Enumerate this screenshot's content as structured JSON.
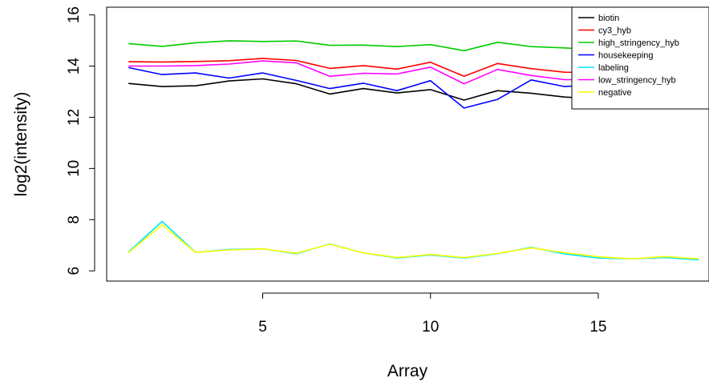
{
  "chart_data": {
    "type": "line",
    "xlabel": "Array",
    "ylabel": "log2(intensity)",
    "xlim": [
      0.35,
      18.3
    ],
    "ylim": [
      5.6,
      16.3
    ],
    "xticks": [
      5,
      10,
      15
    ],
    "yticks": [
      6,
      8,
      10,
      12,
      14,
      16
    ],
    "x": [
      1,
      2,
      3,
      4,
      5,
      6,
      7,
      8,
      9,
      10,
      11,
      12,
      13,
      14,
      15,
      16,
      17,
      18
    ],
    "legend_position": "top-right",
    "series": [
      {
        "name": "biotin",
        "color": "#000000",
        "values": [
          13.32,
          13.2,
          13.23,
          13.42,
          13.5,
          13.31,
          12.91,
          13.12,
          12.95,
          13.08,
          12.67,
          13.04,
          12.94,
          12.79,
          12.72,
          12.57,
          12.9,
          12.58
        ]
      },
      {
        "name": "cy3_hyb",
        "color": "#ff0000",
        "values": [
          14.17,
          14.16,
          14.18,
          14.21,
          14.3,
          14.22,
          13.91,
          14.02,
          13.88,
          14.15,
          13.6,
          14.1,
          13.9,
          13.76,
          13.75,
          13.52,
          13.86,
          13.62
        ]
      },
      {
        "name": "high_stringency_hyb",
        "color": "#00cc00",
        "values": [
          14.88,
          14.77,
          14.91,
          14.99,
          14.96,
          14.98,
          14.81,
          14.82,
          14.76,
          14.84,
          14.6,
          14.93,
          14.76,
          14.71,
          14.63,
          14.5,
          14.84,
          14.53
        ]
      },
      {
        "name": "housekeeping",
        "color": "#0000ff",
        "values": [
          13.94,
          13.67,
          13.73,
          13.53,
          13.73,
          13.44,
          13.12,
          13.33,
          13.04,
          13.43,
          12.36,
          12.7,
          13.46,
          13.2,
          13.28,
          13.12,
          12.88,
          12.63
        ]
      },
      {
        "name": "labeling",
        "color": "#00e5ff",
        "values": [
          6.73,
          7.93,
          6.72,
          6.84,
          6.86,
          6.67,
          7.05,
          6.7,
          6.5,
          6.62,
          6.5,
          6.67,
          6.92,
          6.66,
          6.5,
          6.47,
          6.52,
          6.43
        ]
      },
      {
        "name": "low_stringency_hyb",
        "color": "#ff00ff",
        "values": [
          14.0,
          14.0,
          14.02,
          14.08,
          14.2,
          14.13,
          13.6,
          13.72,
          13.69,
          13.96,
          13.31,
          13.87,
          13.63,
          13.47,
          13.47,
          13.37,
          13.61,
          13.5
        ]
      },
      {
        "name": "negative",
        "color": "#ffff00",
        "values": [
          6.71,
          7.8,
          6.72,
          6.82,
          6.86,
          6.69,
          7.04,
          6.7,
          6.52,
          6.64,
          6.52,
          6.68,
          6.9,
          6.71,
          6.55,
          6.47,
          6.56,
          6.47
        ]
      }
    ]
  }
}
